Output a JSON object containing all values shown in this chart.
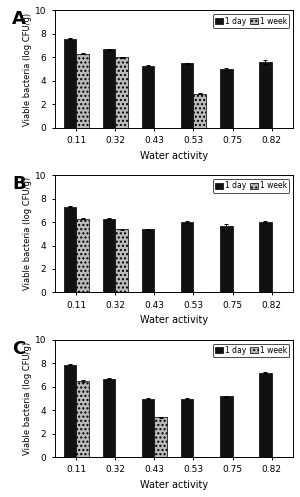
{
  "categories": [
    "0.11",
    "0.32",
    "0.43",
    "0.53",
    "0.75",
    "0.82"
  ],
  "panels": [
    {
      "label": "A",
      "day1": [
        7.6,
        6.7,
        5.3,
        5.5,
        5.0,
        5.6
      ],
      "week1": [
        6.3,
        6.0,
        0.0,
        2.9,
        0.0,
        0.0
      ],
      "day1_err": [
        0.05,
        0.05,
        0.05,
        0.05,
        0.05,
        0.15
      ],
      "week1_err": [
        0.05,
        0.05,
        0.0,
        0.05,
        0.0,
        0.0
      ]
    },
    {
      "label": "B",
      "day1": [
        7.3,
        6.3,
        5.4,
        6.0,
        5.7,
        6.0
      ],
      "week1": [
        6.3,
        5.4,
        0.0,
        0.0,
        0.0,
        0.0
      ],
      "day1_err": [
        0.05,
        0.05,
        0.05,
        0.05,
        0.12,
        0.05
      ],
      "week1_err": [
        0.05,
        0.05,
        0.0,
        0.0,
        0.0,
        0.0
      ]
    },
    {
      "label": "C",
      "day1": [
        7.9,
        6.7,
        5.0,
        5.0,
        5.2,
        7.2
      ],
      "week1": [
        6.5,
        0.0,
        3.4,
        0.0,
        0.0,
        0.0
      ],
      "day1_err": [
        0.05,
        0.05,
        0.05,
        0.05,
        0.05,
        0.05
      ],
      "week1_err": [
        0.05,
        0.0,
        0.05,
        0.0,
        0.0,
        0.0
      ]
    }
  ],
  "ylabel": "Viable bacteria (log CFU/g)",
  "xlabel": "Water activity",
  "ylim": [
    0,
    10
  ],
  "yticks": [
    0,
    2,
    4,
    6,
    8,
    10
  ],
  "bar_color_day": "#111111",
  "bar_color_week": "#bbbbbb",
  "legend_day": "1 day",
  "legend_week": "1 week",
  "fig_width": 3.0,
  "fig_height": 4.97,
  "dpi": 100
}
